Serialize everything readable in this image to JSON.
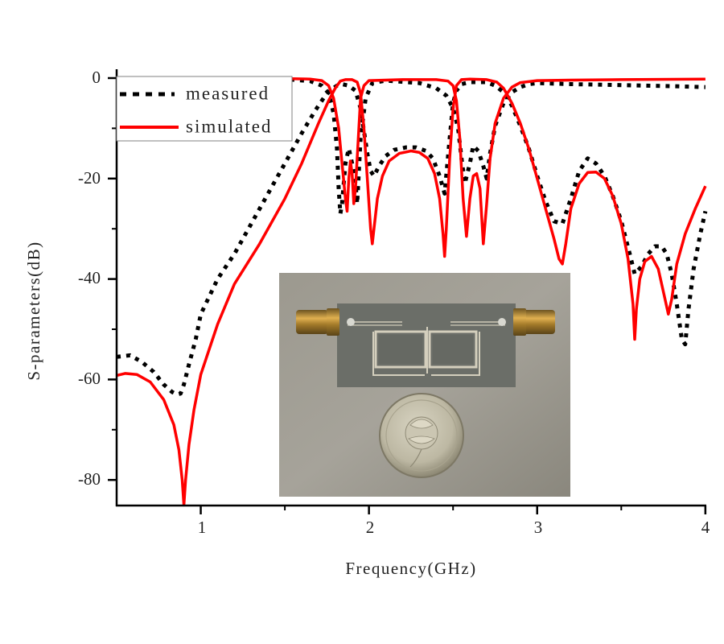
{
  "chart_data": {
    "type": "line",
    "title": "",
    "xlabel": "Frequency(GHz)",
    "ylabel": "S-parameters(dB)",
    "xlim": [
      0.5,
      4.0
    ],
    "ylim": [
      -85,
      0
    ],
    "xticks": [
      1,
      2,
      3,
      4
    ],
    "xminor": [
      1.5,
      2.5,
      3.5
    ],
    "yticks": [
      0,
      -20,
      -40,
      -60,
      -80
    ],
    "yminor": [
      -10,
      -30,
      -50,
      -70
    ],
    "grid": false,
    "legend_position": "upper left",
    "legend": [
      {
        "label": "measured",
        "style": "dotted",
        "color": "#000000"
      },
      {
        "label": "simulated",
        "style": "solid",
        "color": "#ff0000"
      }
    ],
    "inset": {
      "description": "Photograph of fabricated dual-band microstrip filter with SMA connectors next to a coin",
      "x_range_ghz": [
        1.45,
        3.2
      ],
      "y_range_db": [
        -38.8,
        -83
      ]
    },
    "series": [
      {
        "name": "simulated S21",
        "group": "simulated",
        "color": "#ff0000",
        "style": "solid",
        "x": [
          0.5,
          0.55,
          0.62,
          0.7,
          0.78,
          0.84,
          0.87,
          0.89,
          0.9,
          0.91,
          0.93,
          0.96,
          1.0,
          1.1,
          1.2,
          1.35,
          1.5,
          1.6,
          1.7,
          1.76,
          1.8,
          1.83,
          1.86,
          1.9,
          1.93,
          1.95,
          1.97,
          1.99,
          2.01,
          2.02,
          2.03,
          2.05,
          2.08,
          2.12,
          2.18,
          2.25,
          2.3,
          2.35,
          2.39,
          2.42,
          2.44,
          2.45,
          2.46,
          2.48,
          2.5,
          2.52,
          2.55,
          2.6,
          2.7,
          2.76,
          2.8,
          2.85,
          2.9,
          2.95,
          3.0,
          3.05,
          3.1,
          3.13,
          3.15,
          3.17,
          3.2,
          3.25,
          3.3,
          3.35,
          3.4,
          3.45,
          3.5,
          3.54,
          3.57,
          3.58,
          3.59,
          3.61,
          3.64,
          3.68,
          3.72,
          3.76,
          3.78,
          3.8,
          3.83,
          3.88,
          3.94,
          4.0
        ],
        "y": [
          -59.2,
          -58.8,
          -59,
          -60.5,
          -64,
          -69,
          -74,
          -80,
          -85,
          -80,
          -73,
          -66,
          -59,
          -49,
          -41,
          -33,
          -24,
          -17,
          -9,
          -4.5,
          -2,
          -0.6,
          -0.3,
          -0.3,
          -0.8,
          -3,
          -10,
          -20,
          -30,
          -33,
          -30,
          -24,
          -19.5,
          -16.5,
          -15,
          -14.5,
          -14.8,
          -16,
          -19,
          -24,
          -31,
          -35.5,
          -30,
          -16,
          -6,
          -1.5,
          -0.3,
          -0.2,
          -0.3,
          -0.8,
          -2,
          -5,
          -9,
          -14,
          -20,
          -26,
          -32,
          -36,
          -37,
          -33,
          -26,
          -21,
          -18.8,
          -18.7,
          -20,
          -23.5,
          -29,
          -36,
          -45,
          -52,
          -46,
          -40,
          -36.5,
          -35.5,
          -38,
          -44,
          -47,
          -44,
          -37,
          -31,
          -26,
          -21.5
        ]
      },
      {
        "name": "simulated S11",
        "group": "simulated",
        "color": "#ff0000",
        "style": "solid",
        "x": [
          1.5,
          1.65,
          1.72,
          1.76,
          1.79,
          1.82,
          1.84,
          1.86,
          1.87,
          1.88,
          1.89,
          1.9,
          1.91,
          1.92,
          1.94,
          1.95,
          1.97,
          2.0,
          2.2,
          2.4,
          2.47,
          2.5,
          2.52,
          2.54,
          2.56,
          2.58,
          2.6,
          2.62,
          2.64,
          2.66,
          2.68,
          2.7,
          2.72,
          2.75,
          2.8,
          2.85,
          2.9,
          3.0,
          3.2,
          3.5,
          4.0
        ],
        "y": [
          -0.1,
          -0.2,
          -0.5,
          -1.5,
          -4,
          -10,
          -17,
          -24,
          -26.5,
          -20,
          -16.5,
          -19,
          -25,
          -22,
          -10,
          -4,
          -1.5,
          -0.5,
          -0.3,
          -0.3,
          -0.6,
          -1.5,
          -4.5,
          -12,
          -24,
          -31.5,
          -24,
          -19.5,
          -19,
          -22,
          -33,
          -25,
          -16,
          -9,
          -4,
          -1.8,
          -0.9,
          -0.5,
          -0.4,
          -0.3,
          -0.2
        ]
      },
      {
        "name": "measured S21",
        "group": "measured",
        "color": "#000000",
        "style": "dotted",
        "x": [
          0.5,
          0.58,
          0.65,
          0.72,
          0.78,
          0.83,
          0.86,
          0.88,
          0.9,
          0.93,
          0.97,
          1.0,
          1.1,
          1.2,
          1.3,
          1.4,
          1.5,
          1.6,
          1.68,
          1.74,
          1.78,
          1.81,
          1.84,
          1.88,
          1.92,
          1.95,
          1.97,
          1.99,
          2.01,
          2.03,
          2.06,
          2.1,
          2.15,
          2.22,
          2.28,
          2.34,
          2.38,
          2.42,
          2.45,
          2.48,
          2.5,
          2.52,
          2.55,
          2.6,
          2.7,
          2.75,
          2.8,
          2.85,
          2.9,
          2.95,
          3.0,
          3.05,
          3.1,
          3.15,
          3.2,
          3.25,
          3.3,
          3.35,
          3.4,
          3.45,
          3.5,
          3.55,
          3.58,
          3.62,
          3.66,
          3.7,
          3.74,
          3.77,
          3.8,
          3.83,
          3.86,
          3.88,
          3.9,
          3.93,
          3.97,
          4.0
        ],
        "y": [
          -55.5,
          -55.2,
          -56.5,
          -58.5,
          -61,
          -62.5,
          -63,
          -62.8,
          -61,
          -57,
          -52,
          -47,
          -40,
          -35,
          -29,
          -23,
          -17,
          -11,
          -6.5,
          -3.5,
          -2.2,
          -1.5,
          -1.2,
          -1.5,
          -2.5,
          -6,
          -10.5,
          -15,
          -18.5,
          -19.5,
          -17.5,
          -15.5,
          -14.3,
          -13.8,
          -13.8,
          -14.5,
          -16,
          -19.5,
          -23,
          -12,
          -5,
          -2.5,
          -1.2,
          -0.8,
          -0.8,
          -1.5,
          -2.8,
          -5.5,
          -9.5,
          -14,
          -19.5,
          -24.5,
          -28.5,
          -29,
          -24,
          -18.5,
          -16,
          -17,
          -19.5,
          -23.5,
          -28.5,
          -35,
          -39,
          -37.5,
          -35,
          -33.5,
          -33.5,
          -35,
          -39,
          -45,
          -52,
          -53,
          -46,
          -38,
          -31,
          -26.5
        ]
      },
      {
        "name": "measured S11",
        "group": "measured",
        "color": "#000000",
        "style": "dotted",
        "x": [
          0.5,
          1.0,
          1.5,
          1.65,
          1.72,
          1.76,
          1.79,
          1.81,
          1.82,
          1.83,
          1.84,
          1.86,
          1.88,
          1.9,
          1.92,
          1.93,
          1.95,
          1.98,
          2.02,
          2.1,
          2.3,
          2.4,
          2.46,
          2.5,
          2.53,
          2.55,
          2.57,
          2.6,
          2.62,
          2.65,
          2.68,
          2.7,
          2.72,
          2.75,
          2.8,
          2.85,
          2.9,
          2.95,
          3.0,
          3.2,
          3.5,
          3.8,
          4.0
        ],
        "y": [
          -0.1,
          -0.1,
          -0.2,
          -0.6,
          -1.5,
          -3,
          -7,
          -14,
          -22,
          -27,
          -25,
          -17,
          -14,
          -17,
          -21,
          -25,
          -12,
          -4,
          -1,
          -0.5,
          -1,
          -2,
          -3.5,
          -6,
          -10,
          -16,
          -21,
          -17,
          -13.5,
          -14.5,
          -17.5,
          -20,
          -15,
          -9.5,
          -5,
          -2.8,
          -1.8,
          -1.2,
          -1,
          -1.2,
          -1.4,
          -1.6,
          -1.8
        ]
      }
    ]
  },
  "axes": {
    "x_title": "Frequency(GHz)",
    "y_title": "S-parameters(dB)",
    "x_tick_labels": [
      "1",
      "2",
      "3",
      "4"
    ],
    "y_tick_labels": [
      "0",
      "-20",
      "-40",
      "-60",
      "-80"
    ]
  },
  "legend": {
    "measured_label": "measured",
    "simulated_label": "simulated"
  },
  "colors": {
    "simulated": "#ff0000",
    "measured": "#000000",
    "axis": "#000000",
    "photo_background": "#8f8c82"
  }
}
